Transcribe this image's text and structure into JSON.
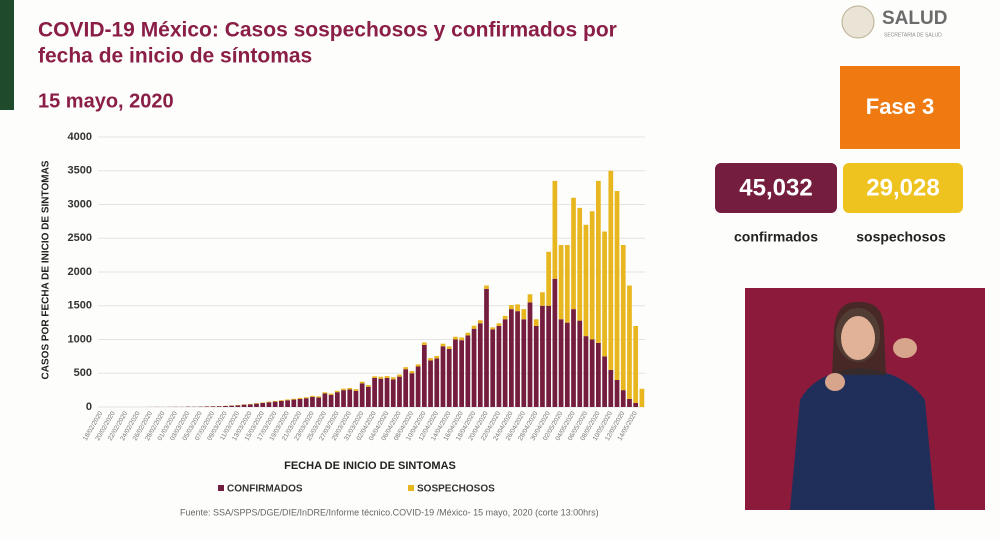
{
  "header": {
    "title_line1": "COVID-19 México: Casos sospechosos y confirmados por",
    "title_line2": "fecha de inicio de síntomas",
    "date": "15 mayo, 2020",
    "logo": "SALUD",
    "logo_sub": "SECRETARÍA DE SALUD"
  },
  "panel": {
    "phase": "Fase 3",
    "confirmed_total": "45,032",
    "confirmed_label": "confirmados",
    "suspected_total": "29,028",
    "suspected_label": "sospechosos"
  },
  "chart_data": {
    "type": "stacked-bar",
    "y_label": "CASOS POR FECHA DE INICIO DE SINTOMAS",
    "x_label": "FECHA DE INICIO DE SINTOMAS",
    "ylim": [
      0,
      4000
    ],
    "yticks": [
      0,
      500,
      1000,
      1500,
      2000,
      2500,
      3000,
      3500,
      4000
    ],
    "grid": true,
    "categories": [
      "18/02/2020",
      null,
      "20/02/2020",
      null,
      "22/02/2020",
      null,
      "24/02/2020",
      null,
      "26/02/2020",
      null,
      "28/02/2020",
      null,
      "01/03/2020",
      null,
      "03/03/2020",
      null,
      "05/03/2020",
      null,
      "07/03/2020",
      null,
      "09/03/2020",
      null,
      "11/03/2020",
      null,
      "13/03/2020",
      null,
      "15/03/2020",
      null,
      "17/03/2020",
      null,
      "19/03/2020",
      null,
      "21/03/2020",
      null,
      "23/03/2020",
      null,
      "25/03/2020",
      null,
      "27/03/2020",
      null,
      "29/03/2020",
      null,
      "31/03/2020",
      null,
      "02/04/2020",
      null,
      "04/04/2020",
      null,
      "06/04/2020",
      null,
      "08/04/2020",
      null,
      "10/04/2020",
      null,
      "12/04/2020",
      null,
      "14/04/2020",
      null,
      "16/04/2020",
      null,
      "18/04/2020",
      null,
      "20/04/2020",
      null,
      "22/04/2020",
      null,
      "24/04/2020",
      null,
      "26/04/2020",
      null,
      "28/04/2020",
      null,
      "30/04/2020",
      null,
      "02/05/2020",
      null,
      "04/05/2020",
      null,
      "06/05/2020",
      null,
      "08/05/2020",
      null,
      "10/05/2020",
      null,
      "12/05/2020",
      null,
      "14/05/2020",
      null
    ],
    "series": [
      {
        "name": "CONFIRMADOS",
        "color": "#741d3e",
        "values": [
          0,
          0,
          0,
          0,
          0,
          0,
          0,
          0,
          1,
          2,
          1,
          2,
          3,
          2,
          5,
          4,
          6,
          8,
          10,
          12,
          15,
          20,
          25,
          35,
          40,
          50,
          60,
          70,
          80,
          90,
          100,
          110,
          120,
          130,
          150,
          140,
          200,
          180,
          220,
          250,
          260,
          240,
          350,
          300,
          430,
          420,
          430,
          410,
          450,
          560,
          500,
          600,
          920,
          690,
          720,
          900,
          860,
          1000,
          990,
          1060,
          1160,
          1240,
          1750,
          1150,
          1200,
          1300,
          1450,
          1420,
          1300,
          1550,
          1200,
          1500,
          1500,
          1900,
          1300,
          1250,
          1450,
          1280,
          1050,
          1000,
          950,
          750,
          550,
          400,
          250,
          120,
          60,
          0
        ]
      },
      {
        "name": "SOSPECHOSOS",
        "color": "#e8b720",
        "values": [
          0,
          0,
          0,
          0,
          0,
          0,
          0,
          0,
          0,
          0,
          0,
          0,
          0,
          0,
          0,
          1,
          1,
          2,
          2,
          3,
          3,
          4,
          5,
          5,
          6,
          8,
          8,
          10,
          10,
          12,
          12,
          12,
          15,
          15,
          15,
          18,
          18,
          20,
          20,
          22,
          22,
          25,
          25,
          25,
          25,
          28,
          28,
          30,
          30,
          30,
          32,
          32,
          35,
          35,
          35,
          38,
          38,
          40,
          40,
          40,
          45,
          45,
          50,
          30,
          40,
          50,
          60,
          100,
          150,
          120,
          100,
          200,
          800,
          1450,
          1100,
          1150,
          1650,
          1670,
          1650,
          1900,
          2400,
          1850,
          2950,
          2800,
          2150,
          1680,
          1140,
          270
        ]
      }
    ]
  },
  "source": "Fuente: SSA/SPPS/DGE/DIE/InDRE/Informe técnico.COVID-19 /México- 15 mayo, 2020 (corte 13:00hrs)"
}
